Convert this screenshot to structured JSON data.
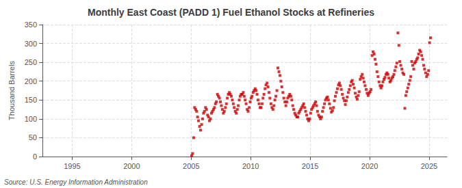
{
  "chart_data": {
    "type": "scatter",
    "title": "Monthly East Coast (PADD 1) Fuel Ethanol Stocks at Refineries",
    "ylabel": "Thousand Barrels",
    "annotations": [
      "Source: U.S. Energy Information Administration"
    ],
    "color": "#cc0000",
    "marker": "square",
    "grid": true,
    "xlim": [
      1992.5,
      2026.5
    ],
    "xticks": [
      1995,
      2000,
      2005,
      2010,
      2015,
      2020,
      2025
    ],
    "ylim": [
      0,
      350
    ],
    "yticks": [
      0,
      50,
      100,
      150,
      200,
      250,
      300,
      350
    ],
    "x": [
      2005.04,
      2005.12,
      2005.21,
      2005.29,
      2005.38,
      2005.46,
      2005.54,
      2005.62,
      2005.71,
      2005.79,
      2005.88,
      2005.96,
      2006.04,
      2006.12,
      2006.21,
      2006.29,
      2006.38,
      2006.46,
      2006.54,
      2006.62,
      2006.71,
      2006.79,
      2006.88,
      2006.96,
      2007.04,
      2007.12,
      2007.21,
      2007.29,
      2007.38,
      2007.46,
      2007.54,
      2007.62,
      2007.71,
      2007.79,
      2007.88,
      2007.96,
      2008.04,
      2008.12,
      2008.21,
      2008.29,
      2008.38,
      2008.46,
      2008.54,
      2008.62,
      2008.71,
      2008.79,
      2008.88,
      2008.96,
      2009.04,
      2009.12,
      2009.21,
      2009.29,
      2009.38,
      2009.46,
      2009.54,
      2009.62,
      2009.71,
      2009.79,
      2009.88,
      2009.96,
      2010.04,
      2010.12,
      2010.21,
      2010.29,
      2010.38,
      2010.46,
      2010.54,
      2010.62,
      2010.71,
      2010.79,
      2010.88,
      2010.96,
      2011.04,
      2011.12,
      2011.21,
      2011.29,
      2011.38,
      2011.46,
      2011.54,
      2011.62,
      2011.71,
      2011.79,
      2011.88,
      2011.96,
      2012.04,
      2012.12,
      2012.21,
      2012.29,
      2012.38,
      2012.46,
      2012.54,
      2012.62,
      2012.71,
      2012.79,
      2012.88,
      2012.96,
      2013.04,
      2013.12,
      2013.21,
      2013.29,
      2013.38,
      2013.46,
      2013.54,
      2013.62,
      2013.71,
      2013.79,
      2013.88,
      2013.96,
      2014.04,
      2014.12,
      2014.21,
      2014.29,
      2014.38,
      2014.46,
      2014.54,
      2014.62,
      2014.71,
      2014.79,
      2014.88,
      2014.96,
      2015.04,
      2015.12,
      2015.21,
      2015.29,
      2015.38,
      2015.46,
      2015.54,
      2015.62,
      2015.71,
      2015.79,
      2015.88,
      2015.96,
      2016.04,
      2016.12,
      2016.21,
      2016.29,
      2016.38,
      2016.46,
      2016.54,
      2016.62,
      2016.71,
      2016.79,
      2016.88,
      2016.96,
      2017.04,
      2017.12,
      2017.21,
      2017.29,
      2017.38,
      2017.46,
      2017.54,
      2017.62,
      2017.71,
      2017.79,
      2017.88,
      2017.96,
      2018.04,
      2018.12,
      2018.21,
      2018.29,
      2018.38,
      2018.46,
      2018.54,
      2018.62,
      2018.71,
      2018.79,
      2018.88,
      2018.96,
      2019.04,
      2019.12,
      2019.21,
      2019.29,
      2019.38,
      2019.46,
      2019.54,
      2019.62,
      2019.71,
      2019.79,
      2019.88,
      2019.96,
      2020.04,
      2020.12,
      2020.21,
      2020.29,
      2020.38,
      2020.46,
      2020.54,
      2020.62,
      2020.71,
      2020.79,
      2020.88,
      2020.96,
      2021.04,
      2021.12,
      2021.21,
      2021.29,
      2021.38,
      2021.46,
      2021.54,
      2021.62,
      2021.71,
      2021.79,
      2021.88,
      2021.96,
      2022.04,
      2022.12,
      2022.21,
      2022.29,
      2022.38,
      2022.46,
      2022.54,
      2022.62,
      2022.71,
      2022.79,
      2022.88,
      2022.96,
      2023.04,
      2023.12,
      2023.21,
      2023.29,
      2023.38,
      2023.46,
      2023.54,
      2023.62,
      2023.71,
      2023.79,
      2023.88,
      2023.96,
      2024.04,
      2024.12,
      2024.21,
      2024.29,
      2024.38,
      2024.46,
      2024.54,
      2024.62,
      2024.71,
      2024.79,
      2024.88,
      2024.96,
      2025.04,
      2025.12
    ],
    "values": [
      2,
      8,
      50,
      130,
      125,
      120,
      105,
      95,
      80,
      70,
      85,
      100,
      115,
      120,
      130,
      125,
      110,
      105,
      95,
      100,
      115,
      120,
      125,
      130,
      140,
      145,
      165,
      160,
      155,
      145,
      135,
      125,
      115,
      120,
      130,
      140,
      155,
      165,
      170,
      165,
      160,
      150,
      140,
      130,
      120,
      115,
      125,
      135,
      150,
      160,
      165,
      165,
      170,
      160,
      150,
      140,
      125,
      120,
      130,
      145,
      155,
      160,
      170,
      175,
      180,
      175,
      165,
      150,
      140,
      130,
      130,
      140,
      155,
      165,
      180,
      190,
      195,
      185,
      170,
      155,
      140,
      130,
      125,
      135,
      150,
      160,
      175,
      235,
      225,
      215,
      200,
      185,
      170,
      155,
      145,
      135,
      145,
      155,
      160,
      165,
      160,
      150,
      135,
      125,
      115,
      110,
      105,
      105,
      115,
      120,
      125,
      130,
      135,
      140,
      130,
      120,
      110,
      100,
      95,
      100,
      115,
      125,
      130,
      135,
      140,
      145,
      135,
      120,
      110,
      105,
      100,
      105,
      120,
      130,
      140,
      150,
      155,
      158,
      150,
      140,
      128,
      118,
      122,
      130,
      148,
      160,
      170,
      180,
      190,
      195,
      188,
      178,
      165,
      155,
      148,
      138,
      148,
      158,
      170,
      178,
      188,
      198,
      202,
      192,
      182,
      168,
      158,
      152,
      162,
      172,
      205,
      212,
      218,
      208,
      198,
      188,
      178,
      168,
      162,
      168,
      172,
      178,
      268,
      278,
      272,
      258,
      245,
      225,
      212,
      198,
      188,
      182,
      188,
      198,
      205,
      210,
      218,
      222,
      218,
      208,
      198,
      202,
      208,
      212,
      218,
      228,
      238,
      248,
      328,
      295,
      252,
      242,
      232,
      222,
      218,
      128,
      162,
      172,
      182,
      192,
      202,
      212,
      252,
      242,
      232,
      248,
      252,
      258,
      262,
      272,
      282,
      278,
      268,
      258,
      242,
      232,
      222,
      212,
      218,
      228,
      302,
      315
    ]
  }
}
